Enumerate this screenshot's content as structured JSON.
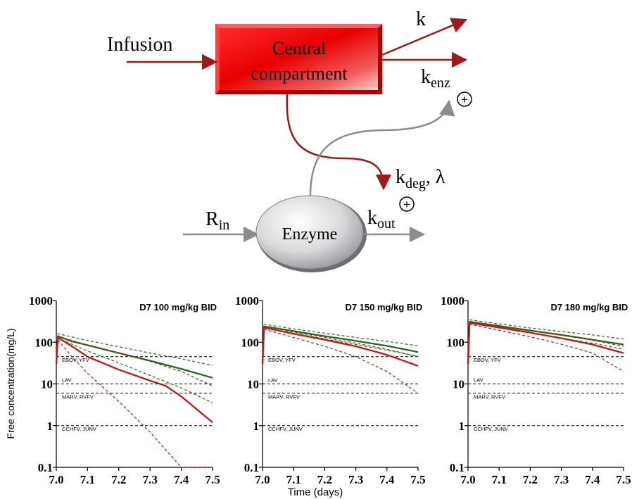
{
  "diagram": {
    "infusion_label": "Infusion",
    "central_line1": "Central",
    "central_line2": "compartment",
    "k_label": "k",
    "kenz_main": "k",
    "kenz_sub": "enz",
    "kdeg_main": "k",
    "kdeg_sub": "deg",
    "kdeg_suffix": ", λ",
    "rin_main": "R",
    "rin_sub": "in",
    "enzyme_label": "Enzyme",
    "kout_main": "k",
    "kout_sub": "out",
    "plus_symbol": "+",
    "colors": {
      "central_box": "#e00000",
      "arrow_dark_red": "#a01818",
      "arrow_gray": "#8c8c8c",
      "enzyme_fill": "#c8c8cc"
    }
  },
  "axis": {
    "ylabel": "Free concentration(mg/L)",
    "xlabel": "Time (days)",
    "yticks": [
      "0.1",
      "1",
      "10",
      "100",
      "1000"
    ],
    "xticks": [
      "7.0",
      "7.1",
      "7.2",
      "7.3",
      "7.4",
      "7.5"
    ]
  },
  "chart_data": [
    {
      "type": "line",
      "title": "D7  100 mg/kg BID",
      "yscale": "log",
      "xlim": [
        7.0,
        7.5
      ],
      "ylim": [
        0.1,
        1000
      ],
      "references": [
        {
          "label": "EBOV, YFV",
          "y": 45
        },
        {
          "label": "LAV",
          "y": 10
        },
        {
          "label": "MARV, RVFV",
          "y": 6
        },
        {
          "label": "CCHFV, JUNV",
          "y": 1
        }
      ],
      "series": [
        {
          "color": "#1e6e1e",
          "style": "solid",
          "x": [
            7.0,
            7.005,
            7.05,
            7.1,
            7.2,
            7.3,
            7.4,
            7.5
          ],
          "y": [
            30,
            140,
            105,
            85,
            55,
            36,
            23,
            14
          ]
        },
        {
          "color": "#1e6e1e",
          "style": "dashed",
          "x": [
            7.0,
            7.005,
            7.1,
            7.2,
            7.3,
            7.4,
            7.5
          ],
          "y": [
            30,
            160,
            110,
            78,
            55,
            40,
            28
          ]
        },
        {
          "color": "#1e6e1e",
          "style": "dashed",
          "x": [
            7.0,
            7.005,
            7.1,
            7.2,
            7.3,
            7.4,
            7.5
          ],
          "y": [
            30,
            125,
            62,
            32,
            16,
            8,
            3.5
          ]
        },
        {
          "color": "#c01818",
          "style": "solid",
          "x": [
            7.0,
            7.005,
            7.05,
            7.1,
            7.2,
            7.3,
            7.35,
            7.4,
            7.5
          ],
          "y": [
            30,
            130,
            80,
            45,
            22,
            12,
            9,
            5,
            1.2
          ]
        },
        {
          "color": "#c01818",
          "style": "dashed",
          "x": [
            7.0,
            7.005,
            7.1,
            7.2,
            7.3,
            7.4,
            7.5
          ],
          "y": [
            30,
            140,
            85,
            55,
            35,
            20,
            9
          ]
        },
        {
          "color": "#c01818",
          "style": "dashed",
          "x": [
            7.0,
            7.005,
            7.05,
            7.1,
            7.2,
            7.3,
            7.4,
            7.5
          ],
          "y": [
            30,
            115,
            45,
            18,
            3.8,
            0.7,
            0.1,
            0.1
          ]
        }
      ]
    },
    {
      "type": "line",
      "title": "D7  150 mg/kg BID",
      "yscale": "log",
      "xlim": [
        7.0,
        7.5
      ],
      "ylim": [
        0.1,
        1000
      ],
      "references": [
        {
          "label": "EBOV, YFV",
          "y": 45
        },
        {
          "label": "LAV",
          "y": 10
        },
        {
          "label": "MARV, RVFV",
          "y": 6
        },
        {
          "label": "CCHFV, JUNV",
          "y": 1
        }
      ],
      "series": [
        {
          "color": "#1e6e1e",
          "style": "solid",
          "x": [
            7.0,
            7.005,
            7.1,
            7.2,
            7.3,
            7.4,
            7.5
          ],
          "y": [
            30,
            240,
            185,
            140,
            108,
            82,
            58
          ]
        },
        {
          "color": "#1e6e1e",
          "style": "dashed",
          "x": [
            7.0,
            7.005,
            7.1,
            7.2,
            7.3,
            7.4,
            7.5
          ],
          "y": [
            30,
            270,
            210,
            165,
            130,
            105,
            82
          ]
        },
        {
          "color": "#1e6e1e",
          "style": "dashed",
          "x": [
            7.0,
            7.005,
            7.1,
            7.2,
            7.3,
            7.4,
            7.5
          ],
          "y": [
            30,
            220,
            165,
            120,
            88,
            64,
            46
          ]
        },
        {
          "color": "#c01818",
          "style": "solid",
          "x": [
            7.0,
            7.005,
            7.1,
            7.2,
            7.3,
            7.4,
            7.5
          ],
          "y": [
            30,
            225,
            160,
            115,
            80,
            50,
            27
          ]
        },
        {
          "color": "#c01818",
          "style": "dashed",
          "x": [
            7.0,
            7.005,
            7.1,
            7.2,
            7.3,
            7.4,
            7.5
          ],
          "y": [
            30,
            240,
            175,
            130,
            95,
            68,
            45
          ]
        },
        {
          "color": "#c01818",
          "style": "dashed",
          "x": [
            7.0,
            7.005,
            7.1,
            7.2,
            7.3,
            7.4,
            7.5
          ],
          "y": [
            30,
            205,
            130,
            80,
            45,
            20,
            6
          ]
        }
      ]
    },
    {
      "type": "line",
      "title": "D7  180 mg/kg BID",
      "yscale": "log",
      "xlim": [
        7.0,
        7.5
      ],
      "ylim": [
        0.1,
        1000
      ],
      "references": [
        {
          "label": "EBOV, YFV",
          "y": 45
        },
        {
          "label": "LAV",
          "y": 10
        },
        {
          "label": "MARV, RVFV",
          "y": 6
        },
        {
          "label": "CCHFV, JUNV",
          "y": 1
        }
      ],
      "series": [
        {
          "color": "#1e6e1e",
          "style": "solid",
          "x": [
            7.0,
            7.005,
            7.1,
            7.2,
            7.3,
            7.4,
            7.5
          ],
          "y": [
            30,
            310,
            245,
            190,
            150,
            115,
            88
          ]
        },
        {
          "color": "#1e6e1e",
          "style": "dashed",
          "x": [
            7.0,
            7.005,
            7.1,
            7.2,
            7.3,
            7.4,
            7.5
          ],
          "y": [
            30,
            345,
            275,
            220,
            180,
            150,
            120
          ]
        },
        {
          "color": "#1e6e1e",
          "style": "dashed",
          "x": [
            7.0,
            7.005,
            7.1,
            7.2,
            7.3,
            7.4,
            7.5
          ],
          "y": [
            30,
            285,
            220,
            165,
            125,
            95,
            68
          ]
        },
        {
          "color": "#c01818",
          "style": "solid",
          "x": [
            7.0,
            7.005,
            7.1,
            7.2,
            7.3,
            7.4,
            7.5
          ],
          "y": [
            30,
            290,
            225,
            170,
            125,
            88,
            55
          ]
        },
        {
          "color": "#c01818",
          "style": "dashed",
          "x": [
            7.0,
            7.005,
            7.1,
            7.2,
            7.3,
            7.4,
            7.5
          ],
          "y": [
            30,
            315,
            250,
            195,
            150,
            112,
            80
          ]
        },
        {
          "color": "#c01818",
          "style": "dashed",
          "x": [
            7.0,
            7.005,
            7.1,
            7.2,
            7.3,
            7.4,
            7.5
          ],
          "y": [
            30,
            270,
            195,
            135,
            90,
            55,
            20
          ]
        }
      ]
    }
  ]
}
